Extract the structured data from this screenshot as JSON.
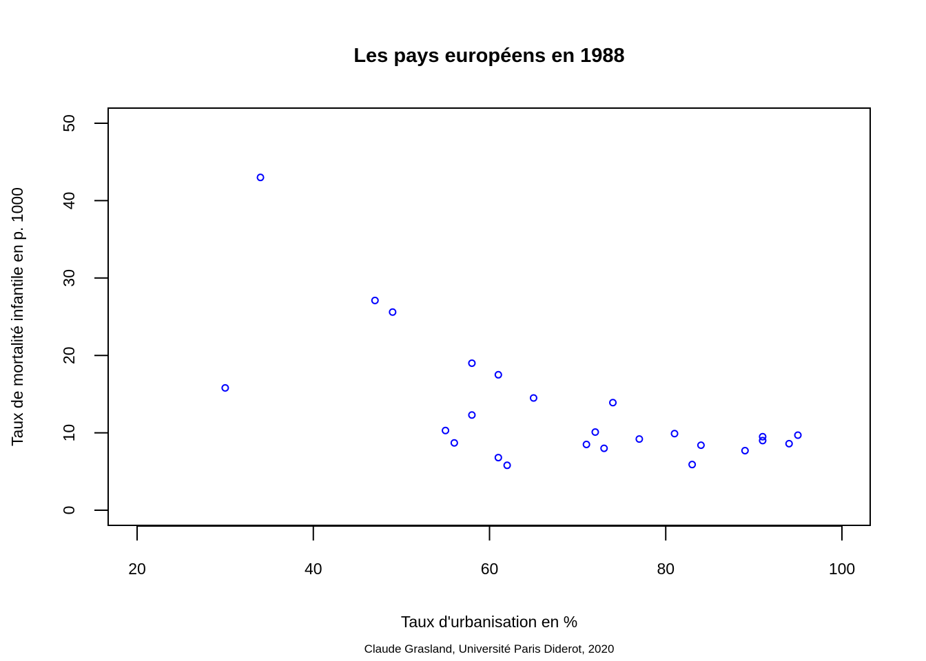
{
  "chart_data": {
    "type": "scatter",
    "title": "Les pays européens en 1988",
    "xlabel": "Taux d'urbanisation en %",
    "ylabel": "Taux de mortalité infantile en p. 1000",
    "caption": "Claude Grasland, Université Paris Diderot, 2020",
    "xlim": [
      20,
      100
    ],
    "ylim": [
      0,
      50
    ],
    "x_ticks": [
      20,
      40,
      60,
      80,
      100
    ],
    "y_ticks": [
      0,
      10,
      20,
      30,
      40,
      50
    ],
    "grid": false,
    "point_color": "#0000ff",
    "points": [
      {
        "x": 30,
        "y": 15.8
      },
      {
        "x": 34,
        "y": 43.0
      },
      {
        "x": 47,
        "y": 27.1
      },
      {
        "x": 49,
        "y": 25.6
      },
      {
        "x": 55,
        "y": 10.3
      },
      {
        "x": 56,
        "y": 8.7
      },
      {
        "x": 58,
        "y": 19.0
      },
      {
        "x": 58,
        "y": 12.3
      },
      {
        "x": 61,
        "y": 17.5
      },
      {
        "x": 61,
        "y": 6.8
      },
      {
        "x": 62,
        "y": 5.8
      },
      {
        "x": 65,
        "y": 14.5
      },
      {
        "x": 71,
        "y": 8.5
      },
      {
        "x": 72,
        "y": 10.1
      },
      {
        "x": 73,
        "y": 8.0
      },
      {
        "x": 74,
        "y": 13.9
      },
      {
        "x": 77,
        "y": 9.2
      },
      {
        "x": 81,
        "y": 9.9
      },
      {
        "x": 83,
        "y": 5.9
      },
      {
        "x": 84,
        "y": 8.4
      },
      {
        "x": 89,
        "y": 7.7
      },
      {
        "x": 91,
        "y": 9.5
      },
      {
        "x": 91,
        "y": 9.0
      },
      {
        "x": 94,
        "y": 8.6
      },
      {
        "x": 95,
        "y": 9.7
      }
    ]
  }
}
